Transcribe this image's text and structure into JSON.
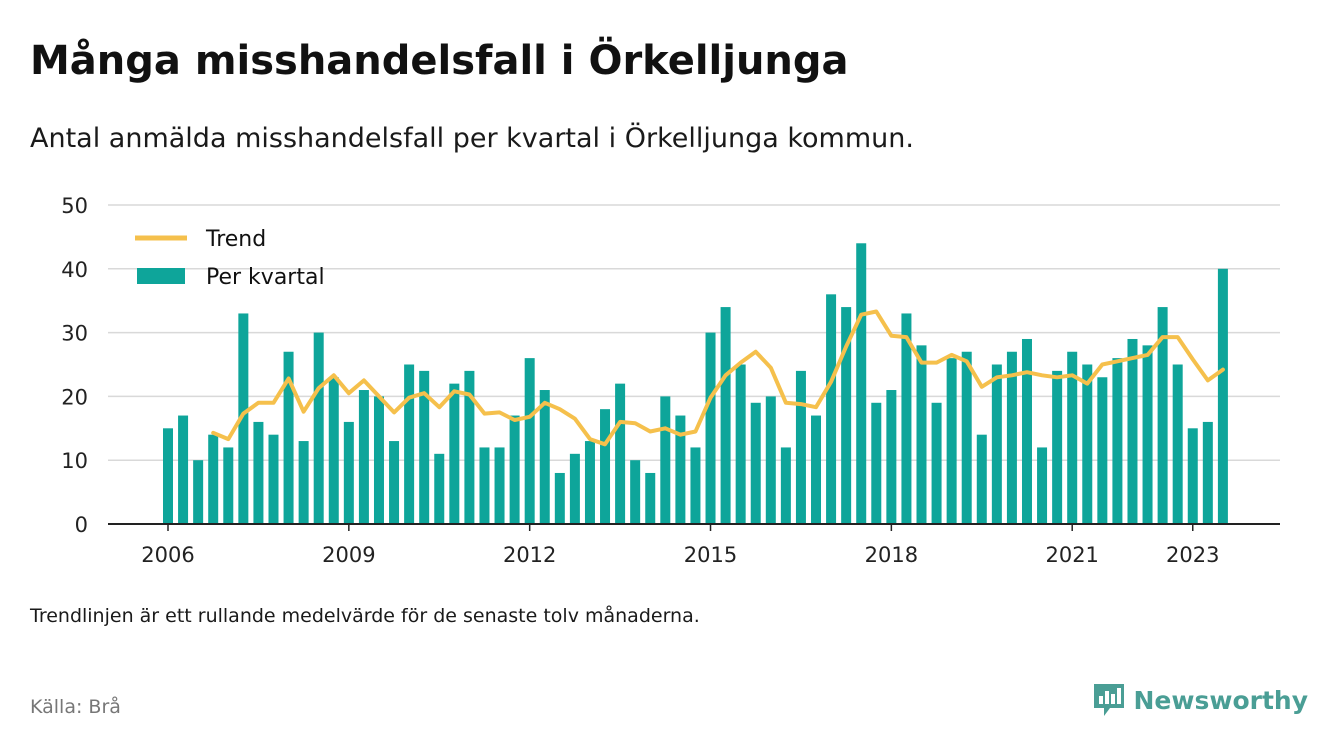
{
  "title": "Många misshandelsfall i Örkelljunga",
  "subtitle": "Antal anmälda misshandelsfall per kvartal i Örkelljunga kommun.",
  "footnote": "Trendlinjen är ett rullande medelvärde för de senaste tolv månaderna.",
  "source": "Källa: Brå",
  "brand": "Newsworthy",
  "colors": {
    "bars": "#0ea59a",
    "trend": "#f5c04c",
    "grid": "#d9d9d9",
    "axis": "#222222",
    "brand": "#4a9e95",
    "source_text": "#777777"
  },
  "chart_data": {
    "type": "bar",
    "x_unit": "quarter",
    "x_start": "2006 Q1",
    "x_end": "2023 Q3",
    "x_ticks": [
      "2006",
      "2009",
      "2012",
      "2015",
      "2018",
      "2021",
      "2023"
    ],
    "y_ticks": [
      "0",
      "10",
      "20",
      "30",
      "40",
      "50"
    ],
    "ylim": [
      0,
      50
    ],
    "grid": true,
    "legend_position": "top-left",
    "series": [
      {
        "name": "Per kvartal",
        "type": "bar",
        "values": [
          15,
          17,
          10,
          14,
          12,
          33,
          16,
          14,
          27,
          13,
          30,
          23,
          16,
          21,
          20,
          13,
          25,
          24,
          11,
          22,
          24,
          12,
          12,
          17,
          26,
          21,
          8,
          11,
          13,
          18,
          22,
          10,
          8,
          20,
          17,
          12,
          30,
          34,
          25,
          19,
          20,
          12,
          24,
          17,
          36,
          34,
          44,
          19,
          21,
          33,
          28,
          19,
          26,
          27,
          14,
          25,
          27,
          29,
          12,
          24,
          27,
          25,
          23,
          26,
          29,
          28,
          34,
          25,
          15,
          16,
          40
        ]
      },
      {
        "name": "Trend",
        "type": "line",
        "values": [
          null,
          null,
          null,
          14.3,
          13.3,
          17.3,
          19,
          19,
          22.8,
          17.6,
          21.3,
          23.3,
          20.5,
          22.5,
          20,
          17.5,
          19.8,
          20.5,
          18.3,
          20.8,
          20.3,
          17.3,
          17.5,
          16.3,
          16.8,
          19,
          18,
          16.5,
          13.3,
          12.5,
          16,
          15.8,
          14.5,
          15,
          14,
          14.5,
          19.8,
          23.3,
          25.3,
          27,
          24.5,
          19,
          18.8,
          18.3,
          22.3,
          27.8,
          32.8,
          33.3,
          29.5,
          29.3,
          25.3,
          25.3,
          26.5,
          25.5,
          21.5,
          23,
          23.3,
          23.8,
          23.3,
          23,
          23.3,
          22,
          25,
          25.5,
          26,
          26.5,
          29.3,
          29.3,
          25.8,
          22.5,
          24.2
        ]
      }
    ]
  }
}
